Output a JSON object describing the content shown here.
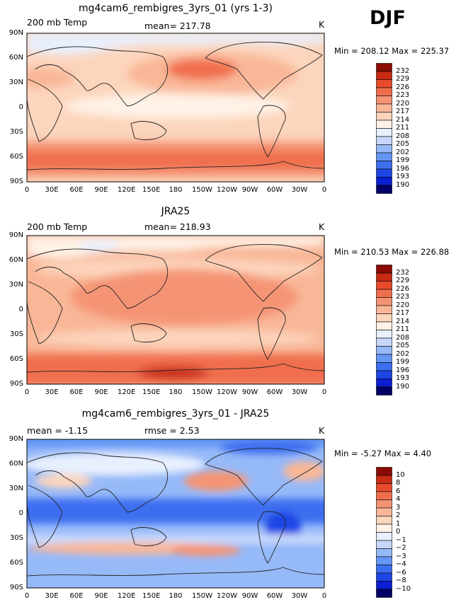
{
  "season": "DJF",
  "x_ticks": [
    "0",
    "30E",
    "60E",
    "90E",
    "120E",
    "150E",
    "180",
    "150W",
    "120W",
    "90W",
    "60W",
    "30W",
    "0"
  ],
  "y_ticks": [
    "90N",
    "60N",
    "30N",
    "0",
    "30S",
    "60S",
    "90S"
  ],
  "colors": {
    "abs": [
      "#000066",
      "#0a1ed2",
      "#1e46e6",
      "#3c6ef0",
      "#6496f5",
      "#96b9f8",
      "#c8d8fc",
      "#e8f0fe",
      "#fff2e6",
      "#fcd5bd",
      "#f9b798",
      "#f59474",
      "#f06e4e",
      "#e84b2c",
      "#c82a12",
      "#8c0a04"
    ],
    "diff": [
      "#000066",
      "#0a1ed2",
      "#1e46e6",
      "#3c6ef0",
      "#6496f5",
      "#96b9f8",
      "#c8d8fc",
      "#e8f0fe",
      "#fff2e6",
      "#fcd5bd",
      "#f9b798",
      "#f59474",
      "#f06e4e",
      "#e84b2c",
      "#c82a12",
      "#8c0a04"
    ]
  },
  "panels": [
    {
      "title": "mg4cam6_rembigres_3yrs_01 (yrs 1-3)",
      "left_label": "200 mb Temp",
      "center_label": "mean= 217.78",
      "right_label": "K",
      "stats": "Min = 208.12 Max = 225.37",
      "scale": "abs",
      "levels": [
        "232",
        "229",
        "226",
        "223",
        "220",
        "217",
        "214",
        "211",
        "208",
        "205",
        "202",
        "199",
        "196",
        "193",
        "190"
      ],
      "mean": 217.78,
      "min": 208.12,
      "max": 225.37
    },
    {
      "title": "JRA25",
      "left_label": "200 mb Temp",
      "center_label": "mean= 218.93",
      "right_label": "K",
      "stats": "Min = 210.53 Max = 226.88",
      "scale": "abs",
      "levels": [
        "232",
        "229",
        "226",
        "223",
        "220",
        "217",
        "214",
        "211",
        "208",
        "205",
        "202",
        "199",
        "196",
        "193",
        "190"
      ],
      "mean": 218.93,
      "min": 210.53,
      "max": 226.88
    },
    {
      "title": "mg4cam6_rembigres_3yrs_01 - JRA25",
      "left_label": "mean =  -1.15",
      "center_label": "rmse =    2.53",
      "right_label": "K",
      "stats": "Min =  -5.27 Max =    4.40",
      "scale": "diff",
      "levels": [
        "10",
        "8",
        "6",
        "4",
        "3",
        "2",
        "1",
        "0",
        "−1",
        "−2",
        "−3",
        "−4",
        "−6",
        "−8",
        "−10"
      ],
      "mean": -1.15,
      "rmse": 2.53,
      "min": -5.27,
      "max": 4.4
    }
  ]
}
